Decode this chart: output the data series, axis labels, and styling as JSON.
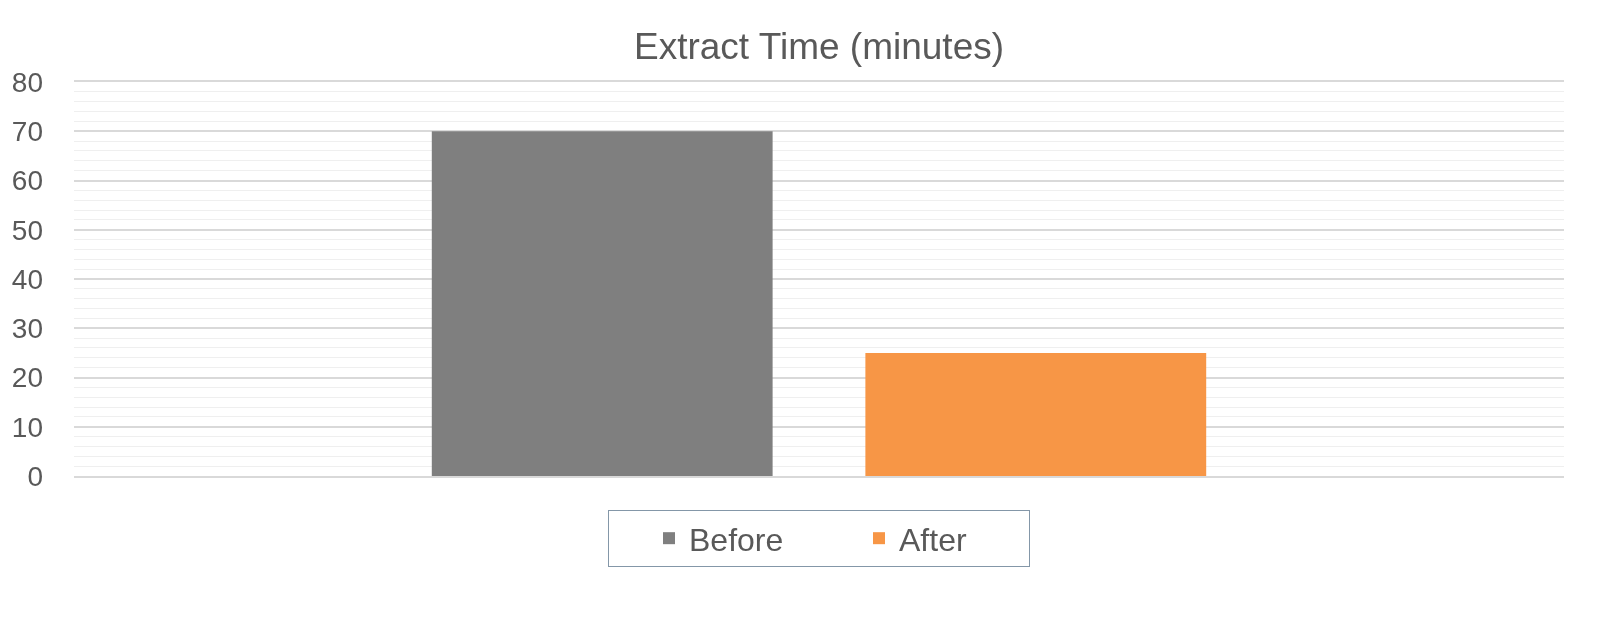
{
  "chart_data": {
    "type": "bar",
    "title": "Extract Time (minutes)",
    "categories": [
      null
    ],
    "series": [
      {
        "name": "Before",
        "color": "#7f7f7f",
        "values": [
          70
        ]
      },
      {
        "name": "After",
        "color": "#f79646",
        "values": [
          25
        ]
      }
    ],
    "ylim": [
      0,
      80
    ],
    "yticks": [
      0,
      {
        "value": 2,
        "label": null
      },
      {
        "value": 4,
        "label": null
      },
      {
        "value": 6,
        "label": null
      },
      {
        "value": 8,
        "label": null
      },
      10,
      {
        "value": 12,
        "label": null
      },
      {
        "value": 14,
        "label": null
      },
      {
        "value": 16,
        "label": null
      },
      {
        "value": 18,
        "label": null
      },
      20,
      {
        "value": 22,
        "label": null
      },
      {
        "value": 24,
        "label": null
      },
      {
        "value": 26,
        "label": null
      },
      {
        "value": 28,
        "label": null
      },
      30,
      {
        "value": 32,
        "label": null
      },
      {
        "value": 34,
        "label": null
      },
      {
        "value": 36,
        "label": null
      },
      {
        "value": 38,
        "label": null
      },
      40,
      {
        "value": 42,
        "label": null
      },
      {
        "value": 44,
        "label": null
      },
      {
        "value": 46,
        "label": null
      },
      {
        "value": 48,
        "label": null
      },
      50,
      {
        "value": 52,
        "label": null
      },
      {
        "value": 54,
        "label": null
      },
      {
        "value": 56,
        "label": null
      },
      {
        "value": 58,
        "label": null
      },
      60,
      {
        "value": 62,
        "label": null
      },
      {
        "value": 64,
        "label": null
      },
      {
        "value": 66,
        "label": null
      },
      {
        "value": 68,
        "label": null
      },
      70,
      {
        "value": 72,
        "label": null
      },
      {
        "value": 74,
        "label": null
      },
      {
        "value": 76,
        "label": null
      },
      {
        "value": 78,
        "label": null
      },
      80
    ],
    "grid": "y",
    "legend": "bottom"
  }
}
